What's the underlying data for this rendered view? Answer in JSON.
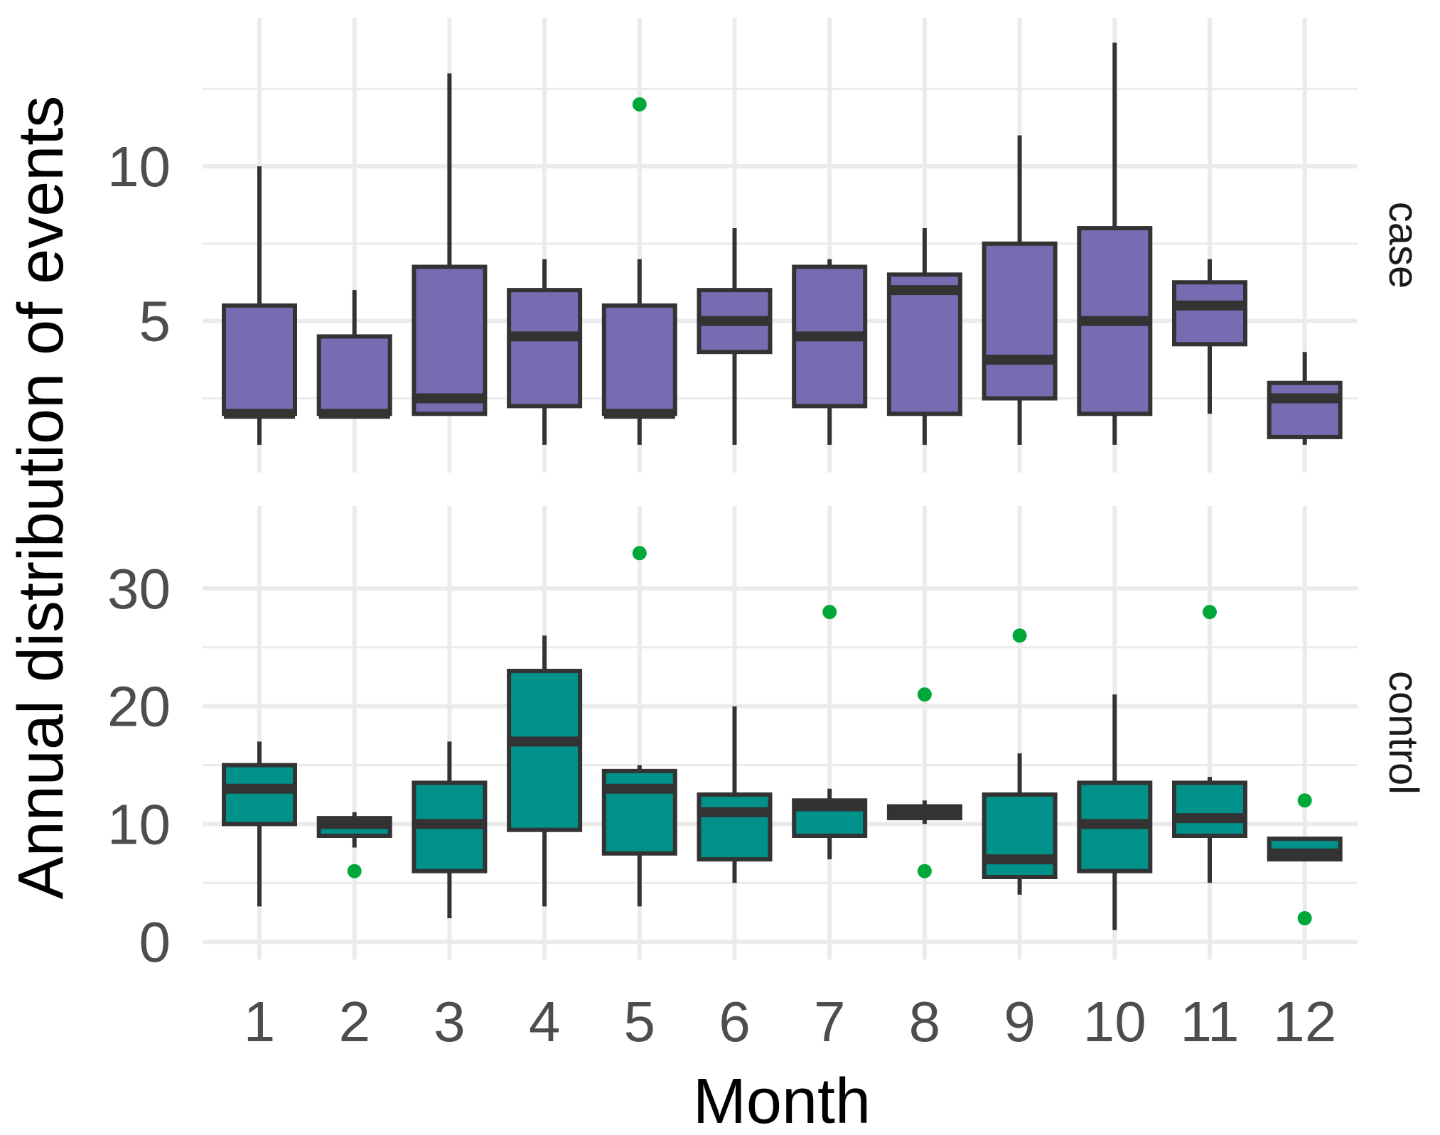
{
  "chart_data": {
    "type": "boxplot",
    "xlabel": "Month",
    "ylabel": "Annual distribution of events",
    "categories": [
      "1",
      "2",
      "3",
      "4",
      "5",
      "6",
      "7",
      "8",
      "9",
      "10",
      "11",
      "12"
    ],
    "colors": {
      "case": "#776cb1",
      "control": "#00918b",
      "outlier": "#00a83a",
      "line": "#333333",
      "grid": "#ebebeb"
    },
    "panels": [
      {
        "label": "case",
        "ylim": [
          0.1,
          14.8
        ],
        "yticks": [
          5,
          10
        ],
        "minor_yticks": [
          2.5,
          7.5,
          12.5
        ],
        "boxes": [
          {
            "month": "1",
            "min": 1,
            "q1": 2,
            "median": 2,
            "q3": 5.5,
            "max": 10,
            "outliers": []
          },
          {
            "month": "2",
            "min": 2,
            "q1": 2,
            "median": 2,
            "q3": 4.5,
            "max": 6,
            "outliers": []
          },
          {
            "month": "3",
            "min": 2,
            "q1": 2,
            "median": 2.5,
            "q3": 6.75,
            "max": 13,
            "outliers": []
          },
          {
            "month": "4",
            "min": 1,
            "q1": 2.25,
            "median": 4.5,
            "q3": 6,
            "max": 7,
            "outliers": []
          },
          {
            "month": "5",
            "min": 1,
            "q1": 2,
            "median": 2,
            "q3": 5.5,
            "max": 7,
            "outliers": [
              12
            ]
          },
          {
            "month": "6",
            "min": 1,
            "q1": 4,
            "median": 5,
            "q3": 6,
            "max": 8,
            "outliers": []
          },
          {
            "month": "7",
            "min": 1,
            "q1": 2.25,
            "median": 4.5,
            "q3": 6.75,
            "max": 7,
            "outliers": []
          },
          {
            "month": "8",
            "min": 1,
            "q1": 2,
            "median": 6,
            "q3": 6.5,
            "max": 8,
            "outliers": []
          },
          {
            "month": "9",
            "min": 1,
            "q1": 2.5,
            "median": 3.75,
            "q3": 7.5,
            "max": 11,
            "outliers": []
          },
          {
            "month": "10",
            "min": 1,
            "q1": 2,
            "median": 5,
            "q3": 8,
            "max": 14,
            "outliers": []
          },
          {
            "month": "11",
            "min": 2,
            "q1": 4.25,
            "median": 5.5,
            "q3": 6.25,
            "max": 7,
            "outliers": []
          },
          {
            "month": "12",
            "min": 1,
            "q1": 1.25,
            "median": 2.5,
            "q3": 3,
            "max": 4,
            "outliers": []
          }
        ]
      },
      {
        "label": "control",
        "ylim": [
          -1.5,
          37
        ],
        "yticks": [
          0,
          10,
          20,
          30
        ],
        "minor_yticks": [
          5,
          15,
          25
        ],
        "boxes": [
          {
            "month": "1",
            "min": 3,
            "q1": 10,
            "median": 13,
            "q3": 15,
            "max": 17,
            "outliers": []
          },
          {
            "month": "2",
            "min": 8,
            "q1": 9,
            "median": 10,
            "q3": 10.5,
            "max": 11,
            "outliers": [
              6
            ]
          },
          {
            "month": "3",
            "min": 2,
            "q1": 6,
            "median": 10,
            "q3": 13.5,
            "max": 17,
            "outliers": []
          },
          {
            "month": "4",
            "min": 3,
            "q1": 9.5,
            "median": 17,
            "q3": 23,
            "max": 26,
            "outliers": []
          },
          {
            "month": "5",
            "min": 3,
            "q1": 7.5,
            "median": 13,
            "q3": 14.5,
            "max": 15,
            "outliers": [
              33
            ]
          },
          {
            "month": "6",
            "min": 5,
            "q1": 7,
            "median": 11,
            "q3": 12.5,
            "max": 20,
            "outliers": []
          },
          {
            "month": "7",
            "min": 7,
            "q1": 9,
            "median": 11.5,
            "q3": 12,
            "max": 13,
            "outliers": [
              28
            ]
          },
          {
            "month": "8",
            "min": 10,
            "q1": 10.5,
            "median": 11,
            "q3": 11.5,
            "max": 12,
            "outliers": [
              21,
              6
            ]
          },
          {
            "month": "9",
            "min": 4,
            "q1": 5.5,
            "median": 7,
            "q3": 12.5,
            "max": 16,
            "outliers": [
              26
            ]
          },
          {
            "month": "10",
            "min": 1,
            "q1": 6,
            "median": 10,
            "q3": 13.5,
            "max": 21,
            "outliers": []
          },
          {
            "month": "11",
            "min": 5,
            "q1": 9,
            "median": 10.5,
            "q3": 13.5,
            "max": 14,
            "outliers": [
              28
            ]
          },
          {
            "month": "12",
            "min": 7,
            "q1": 7,
            "median": 7.5,
            "q3": 8.75,
            "max": 8.75,
            "outliers": [
              12,
              2
            ]
          }
        ]
      }
    ]
  }
}
